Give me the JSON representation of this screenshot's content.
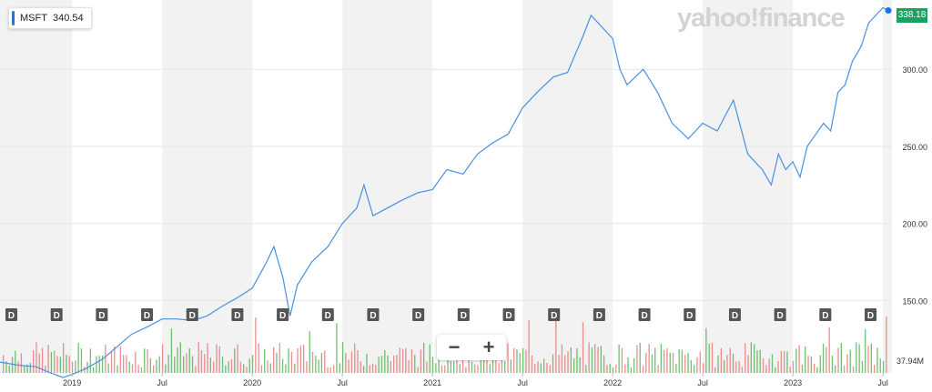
{
  "header": {
    "ticker": "MSFT",
    "ticker_price": "340.54",
    "brand": "yahoo!finance"
  },
  "price_tag": "338.18",
  "volume_tag": "37.94M",
  "zoom": {
    "minus": "−",
    "plus": "+"
  },
  "colors": {
    "line": "#4a90e2",
    "band": "#f2f2f2",
    "up": "#4caf50",
    "down": "#e57373",
    "price_tag": "#1aa260",
    "marker": "#1a73e8"
  },
  "chart_data": {
    "type": "line",
    "y_ticks": [
      "300.00",
      "250.00",
      "200.00",
      "150.00"
    ],
    "x_ticks": [
      "2019",
      "Jul",
      "2020",
      "Jul",
      "2021",
      "Jul",
      "2022",
      "Jul",
      "2023",
      "Jul"
    ],
    "ylim": [
      103,
      345
    ],
    "xlim": [
      2018.6,
      2023.55
    ],
    "dividend_markers": [
      "D",
      "D",
      "D",
      "D",
      "D",
      "D",
      "D",
      "D",
      "D",
      "D",
      "D",
      "D",
      "D",
      "D",
      "D",
      "D",
      "D",
      "D",
      "D",
      "D"
    ],
    "series": [
      {
        "values": [
          [
            2018.6,
            110
          ],
          [
            2018.7,
            108
          ],
          [
            2018.8,
            107
          ],
          [
            2018.88,
            103
          ],
          [
            2018.95,
            100
          ],
          [
            2019.0,
            102
          ],
          [
            2019.08,
            106
          ],
          [
            2019.17,
            112
          ],
          [
            2019.25,
            120
          ],
          [
            2019.33,
            128
          ],
          [
            2019.42,
            133
          ],
          [
            2019.5,
            138
          ],
          [
            2019.58,
            138
          ],
          [
            2019.67,
            137
          ],
          [
            2019.75,
            140
          ],
          [
            2019.83,
            146
          ],
          [
            2019.92,
            152
          ],
          [
            2020.0,
            158
          ],
          [
            2020.08,
            175
          ],
          [
            2020.12,
            185
          ],
          [
            2020.17,
            165
          ],
          [
            2020.21,
            140
          ],
          [
            2020.25,
            160
          ],
          [
            2020.33,
            175
          ],
          [
            2020.42,
            185
          ],
          [
            2020.5,
            200
          ],
          [
            2020.58,
            210
          ],
          [
            2020.62,
            225
          ],
          [
            2020.67,
            205
          ],
          [
            2020.75,
            210
          ],
          [
            2020.83,
            215
          ],
          [
            2020.92,
            220
          ],
          [
            2021.0,
            222
          ],
          [
            2021.08,
            235
          ],
          [
            2021.17,
            232
          ],
          [
            2021.25,
            245
          ],
          [
            2021.33,
            252
          ],
          [
            2021.42,
            258
          ],
          [
            2021.5,
            275
          ],
          [
            2021.58,
            285
          ],
          [
            2021.67,
            295
          ],
          [
            2021.75,
            298
          ],
          [
            2021.83,
            320
          ],
          [
            2021.88,
            335
          ],
          [
            2021.92,
            330
          ],
          [
            2022.0,
            320
          ],
          [
            2022.04,
            300
          ],
          [
            2022.08,
            290
          ],
          [
            2022.17,
            300
          ],
          [
            2022.25,
            285
          ],
          [
            2022.33,
            265
          ],
          [
            2022.42,
            255
          ],
          [
            2022.5,
            265
          ],
          [
            2022.58,
            260
          ],
          [
            2022.67,
            280
          ],
          [
            2022.75,
            245
          ],
          [
            2022.83,
            235
          ],
          [
            2022.88,
            225
          ],
          [
            2022.92,
            245
          ],
          [
            2022.96,
            235
          ],
          [
            2023.0,
            240
          ],
          [
            2023.04,
            230
          ],
          [
            2023.08,
            250
          ],
          [
            2023.17,
            265
          ],
          [
            2023.21,
            260
          ],
          [
            2023.25,
            285
          ],
          [
            2023.29,
            290
          ],
          [
            2023.33,
            305
          ],
          [
            2023.38,
            315
          ],
          [
            2023.42,
            330
          ],
          [
            2023.46,
            335
          ],
          [
            2023.5,
            340
          ],
          [
            2023.53,
            338.18
          ]
        ]
      }
    ]
  }
}
